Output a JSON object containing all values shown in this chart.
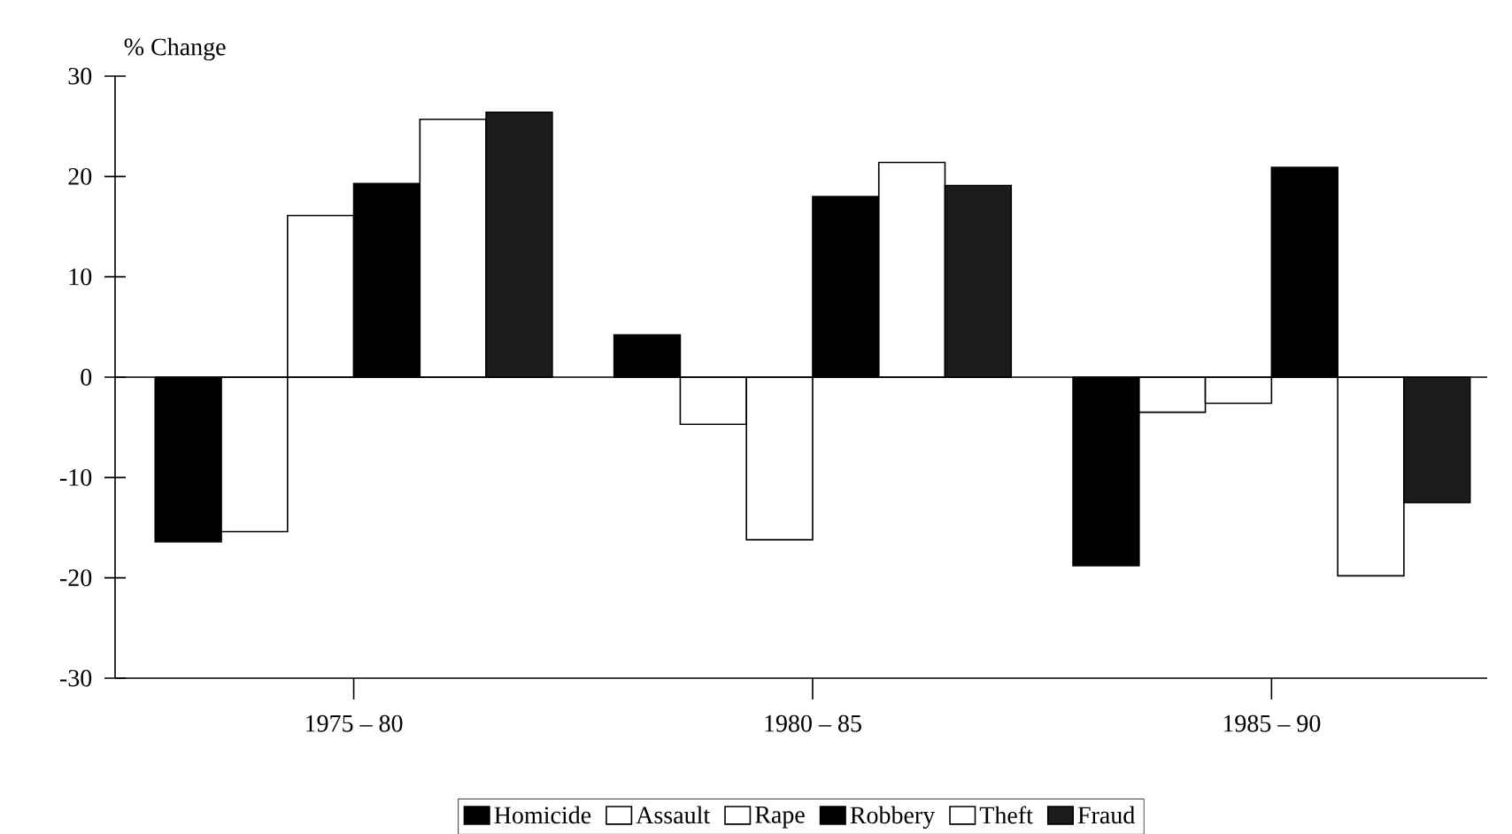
{
  "chart_data": {
    "type": "bar",
    "ylabel": "% Change",
    "categories": [
      "1975 – 80",
      "1980 – 85",
      "1985 – 90"
    ],
    "series": [
      {
        "name": "Homicide",
        "color": "#000000",
        "values": [
          -16.4,
          4.2,
          -18.8
        ]
      },
      {
        "name": "Assault",
        "color": "#ffffff",
        "values": [
          -15.4,
          -4.7,
          -3.5
        ]
      },
      {
        "name": "Rape",
        "color": "#ffffff",
        "values": [
          16.1,
          -16.2,
          -2.6
        ]
      },
      {
        "name": "Robbery",
        "color": "#000000",
        "values": [
          19.3,
          18.0,
          20.9
        ]
      },
      {
        "name": "Theft",
        "color": "#ffffff",
        "values": [
          25.7,
          21.4,
          -19.8
        ]
      },
      {
        "name": "Fraud",
        "color": "#1c1c1c",
        "values": [
          26.4,
          19.1,
          -12.5
        ]
      }
    ],
    "ylim": [
      -30,
      30
    ],
    "yticks": [
      -30,
      -20,
      -10,
      0,
      10,
      20,
      30
    ],
    "ref_lines": [
      {
        "axis": "y",
        "value": 0
      }
    ],
    "grid": false,
    "legend": "bottom"
  }
}
